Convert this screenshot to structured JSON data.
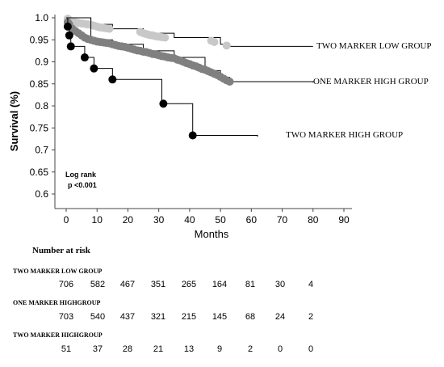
{
  "chart_data": {
    "type": "line",
    "title": "",
    "xlabel": "Months",
    "ylabel": "Survival (%)",
    "xlim": [
      0,
      90
    ],
    "ylim": [
      0.6,
      1.0
    ],
    "x_ticks": [
      "0",
      "10",
      "20",
      "30",
      "40",
      "50",
      "60",
      "70",
      "80",
      "90"
    ],
    "y_ticks": [
      "1.0",
      "0.95",
      "0.9",
      "0.85",
      "0.8",
      "0.75",
      "0.7",
      "0.65",
      "0.6"
    ],
    "annotation": {
      "line1": "Log rank",
      "line2": "p <0.001"
    },
    "series": [
      {
        "name": "TWO  MARKER LOW GROUP",
        "color": "#c8c8c8",
        "step": [
          [
            0,
            1.0
          ],
          [
            8,
            0.985
          ],
          [
            15,
            0.975
          ],
          [
            25,
            0.965
          ],
          [
            35,
            0.955
          ],
          [
            50,
            0.94
          ],
          [
            53,
            0.935
          ],
          [
            80,
            0.935
          ]
        ],
        "events": [
          [
            0.5,
            0.998
          ],
          [
            1,
            0.995
          ],
          [
            2,
            0.992
          ],
          [
            3,
            0.99
          ],
          [
            4,
            0.988
          ],
          [
            5,
            0.987
          ],
          [
            6,
            0.986
          ],
          [
            7,
            0.985
          ],
          [
            8,
            0.984
          ],
          [
            9,
            0.982
          ],
          [
            10,
            0.98
          ],
          [
            11,
            0.978
          ],
          [
            12,
            0.977
          ],
          [
            13,
            0.976
          ],
          [
            14,
            0.975
          ],
          [
            24,
            0.968
          ],
          [
            25,
            0.965
          ],
          [
            26,
            0.963
          ],
          [
            27,
            0.961
          ],
          [
            28,
            0.96
          ],
          [
            29,
            0.958
          ],
          [
            30,
            0.957
          ],
          [
            31,
            0.956
          ],
          [
            32,
            0.955
          ],
          [
            47,
            0.948
          ],
          [
            48,
            0.945
          ],
          [
            52,
            0.937
          ]
        ]
      },
      {
        "name": "ONE MARKER HIGH GROUP",
        "color": "#808080",
        "step": [
          [
            0,
            1.0
          ],
          [
            8,
            0.95
          ],
          [
            15,
            0.94
          ],
          [
            25,
            0.925
          ],
          [
            35,
            0.91
          ],
          [
            45,
            0.88
          ],
          [
            50,
            0.865
          ],
          [
            53,
            0.855
          ],
          [
            80,
            0.853
          ]
        ],
        "events": [
          [
            0.5,
            0.99
          ],
          [
            1,
            0.985
          ],
          [
            2,
            0.975
          ],
          [
            3,
            0.97
          ],
          [
            4,
            0.965
          ],
          [
            5,
            0.96
          ],
          [
            6,
            0.955
          ],
          [
            7,
            0.952
          ],
          [
            8,
            0.95
          ],
          [
            9,
            0.948
          ],
          [
            10,
            0.946
          ],
          [
            11,
            0.945
          ],
          [
            12,
            0.944
          ],
          [
            13,
            0.943
          ],
          [
            14,
            0.942
          ],
          [
            15,
            0.94
          ],
          [
            16,
            0.938
          ],
          [
            17,
            0.936
          ],
          [
            18,
            0.935
          ],
          [
            19,
            0.934
          ],
          [
            20,
            0.932
          ],
          [
            21,
            0.93
          ],
          [
            22,
            0.928
          ],
          [
            23,
            0.926
          ],
          [
            24,
            0.925
          ],
          [
            25,
            0.923
          ],
          [
            26,
            0.922
          ],
          [
            27,
            0.92
          ],
          [
            28,
            0.918
          ],
          [
            29,
            0.917
          ],
          [
            30,
            0.915
          ],
          [
            31,
            0.913
          ],
          [
            32,
            0.912
          ],
          [
            33,
            0.91
          ],
          [
            34,
            0.909
          ],
          [
            35,
            0.908
          ],
          [
            36,
            0.905
          ],
          [
            37,
            0.903
          ],
          [
            38,
            0.9
          ],
          [
            39,
            0.897
          ],
          [
            40,
            0.895
          ],
          [
            41,
            0.892
          ],
          [
            42,
            0.89
          ],
          [
            43,
            0.887
          ],
          [
            44,
            0.884
          ],
          [
            45,
            0.882
          ],
          [
            46,
            0.879
          ],
          [
            47,
            0.876
          ],
          [
            48,
            0.873
          ],
          [
            49,
            0.87
          ],
          [
            50,
            0.866
          ],
          [
            51,
            0.862
          ],
          [
            52,
            0.858
          ],
          [
            53,
            0.855
          ]
        ]
      },
      {
        "name": "TWO MARKER HIGH GROUP",
        "color": "#000000",
        "step": [
          [
            0,
            1.0
          ],
          [
            0.5,
            0.98
          ],
          [
            1,
            0.96
          ],
          [
            1.5,
            0.935
          ],
          [
            6,
            0.935
          ],
          [
            6,
            0.91
          ],
          [
            9,
            0.91
          ],
          [
            9,
            0.885
          ],
          [
            15,
            0.885
          ],
          [
            15,
            0.86
          ],
          [
            31,
            0.86
          ],
          [
            31,
            0.805
          ],
          [
            41,
            0.805
          ],
          [
            41,
            0.733
          ],
          [
            62,
            0.73
          ]
        ],
        "events": [
          [
            0.5,
            0.98
          ],
          [
            1,
            0.96
          ],
          [
            1.5,
            0.935
          ],
          [
            6,
            0.91
          ],
          [
            9,
            0.885
          ],
          [
            15,
            0.86
          ],
          [
            31.5,
            0.805
          ],
          [
            41,
            0.733
          ]
        ]
      }
    ],
    "risk_table": {
      "title": "Number at risk",
      "rows": [
        {
          "label": "TWO  MARKER LOW GROUP",
          "values": [
            706,
            582,
            467,
            351,
            265,
            164,
            81,
            30,
            4
          ]
        },
        {
          "label": "ONE  MARKER HIGHGROUP",
          "values": [
            703,
            540,
            437,
            321,
            215,
            145,
            68,
            24,
            2
          ]
        },
        {
          "label": "TWO MARKER HIGHGROUP",
          "values": [
            51,
            37,
            28,
            21,
            13,
            9,
            2,
            0,
            0
          ]
        }
      ]
    }
  }
}
